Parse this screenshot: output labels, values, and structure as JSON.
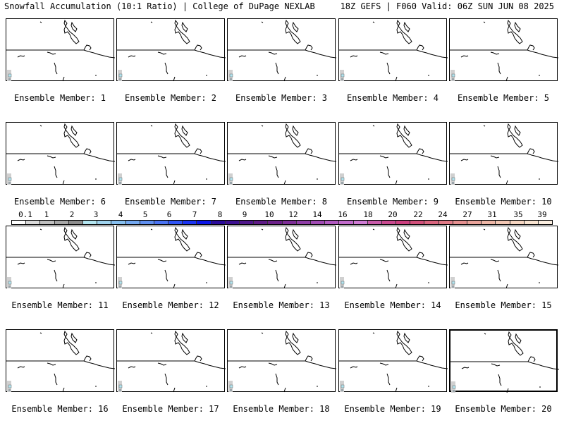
{
  "header": {
    "title": "Snowfall Accumulation (10:1 Ratio) | College of DuPage NEXLAB",
    "run_info": "18Z GEFS | F060 Valid: 06Z SUN JUN 08 2025"
  },
  "members": [
    {
      "label": "Ensemble Member: 1"
    },
    {
      "label": "Ensemble Member: 2"
    },
    {
      "label": "Ensemble Member: 3"
    },
    {
      "label": "Ensemble Member: 4"
    },
    {
      "label": "Ensemble Member: 5"
    },
    {
      "label": "Ensemble Member: 6"
    },
    {
      "label": "Ensemble Member: 7"
    },
    {
      "label": "Ensemble Member: 8"
    },
    {
      "label": "Ensemble Member: 9"
    },
    {
      "label": "Ensemble Member: 10"
    },
    {
      "label": "Ensemble Member: 11"
    },
    {
      "label": "Ensemble Member: 12"
    },
    {
      "label": "Ensemble Member: 13"
    },
    {
      "label": "Ensemble Member: 14"
    },
    {
      "label": "Ensemble Member: 15"
    },
    {
      "label": "Ensemble Member: 16"
    },
    {
      "label": "Ensemble Member: 17"
    },
    {
      "label": "Ensemble Member: 18"
    },
    {
      "label": "Ensemble Member: 19"
    },
    {
      "label": "Ensemble Member: 20"
    }
  ],
  "legend": {
    "labels": [
      "0.1",
      "1",
      "2",
      "3",
      "4",
      "5",
      "6",
      "7",
      "8",
      "9",
      "10",
      "12",
      "14",
      "16",
      "18",
      "20",
      "22",
      "24",
      "27",
      "31",
      "35",
      "39"
    ],
    "colors": [
      "#ffffff",
      "#d9d9d9",
      "#bfbfbf",
      "#a6a6a6",
      "#8c8c8c",
      "#b3e5f0",
      "#9fd3ee",
      "#86bfef",
      "#73a8f0",
      "#5f8ff0",
      "#4a73f3",
      "#2f54f5",
      "#1a33f2",
      "#0a14e6",
      "#2a0a9a",
      "#3d0f90",
      "#4f168a",
      "#5e1a86",
      "#6b2088",
      "#7d2d96",
      "#8e3ca6",
      "#a04ab3",
      "#b159c0",
      "#c16acb",
      "#cf7bd4",
      "#c85aa9",
      "#c9498f",
      "#cb3e7e",
      "#d14f7a",
      "#d9647e",
      "#e07a86",
      "#e48f8f",
      "#e9a39a",
      "#edb6a6",
      "#f1c6b3",
      "#f5d5c1",
      "#f8e3d0",
      "#fbeee0"
    ]
  }
}
